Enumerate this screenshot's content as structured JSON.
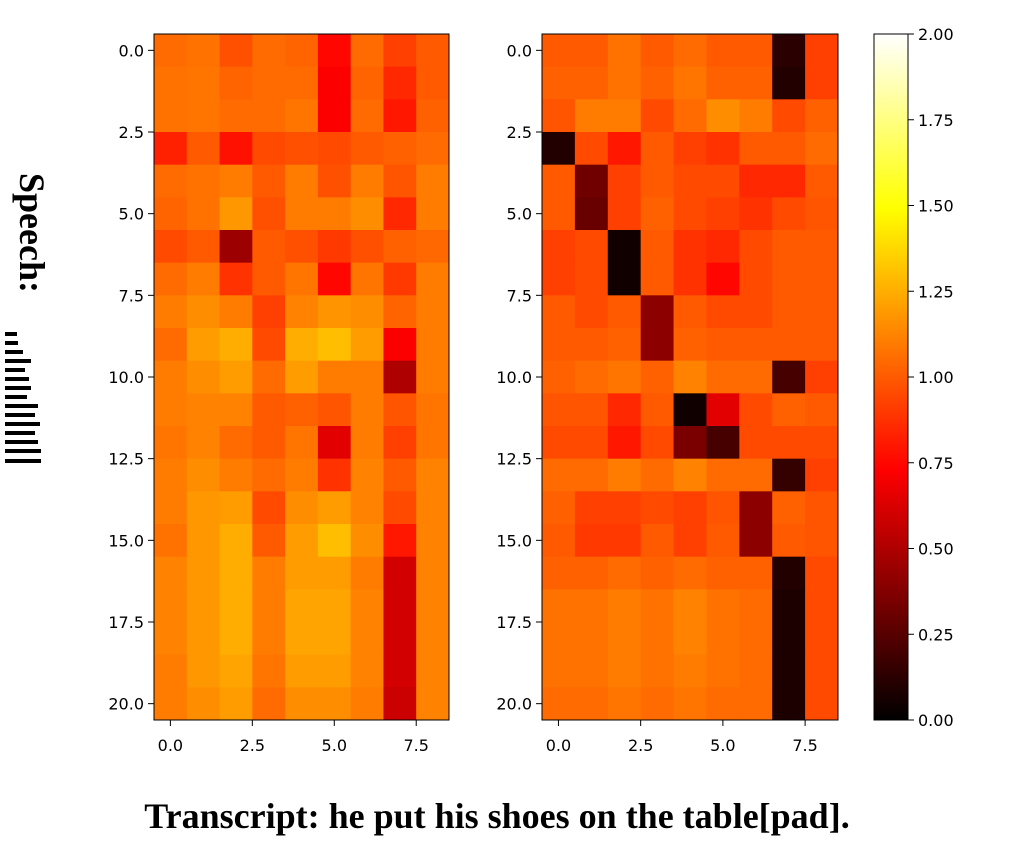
{
  "ylabel": "Speech:",
  "caption": "Transcript: he put his shoes on the table[pad].",
  "chart_data": [
    {
      "type": "heatmap",
      "title": "",
      "colormap": "hot",
      "x_range": [
        -0.5,
        8.5
      ],
      "y_range": [
        -0.5,
        20.5
      ],
      "x_ticks": [
        "0.0",
        "2.5",
        "5.0",
        "7.5"
      ],
      "y_ticks": [
        "0.0",
        "2.5",
        "5.0",
        "7.5",
        "10.0",
        "12.5",
        "15.0",
        "17.5",
        "20.0"
      ],
      "values": [
        [
          1.05,
          1.07,
          0.97,
          1.05,
          1.03,
          0.75,
          1.05,
          0.92,
          1.0
        ],
        [
          1.07,
          1.08,
          1.03,
          1.05,
          1.05,
          0.72,
          1.03,
          0.85,
          1.0
        ],
        [
          1.07,
          1.08,
          1.05,
          1.05,
          1.08,
          0.72,
          1.05,
          0.8,
          1.02
        ],
        [
          0.83,
          1.0,
          0.78,
          0.95,
          0.97,
          0.95,
          1.0,
          1.02,
          1.05
        ],
        [
          1.05,
          1.07,
          1.1,
          1.0,
          1.1,
          0.97,
          1.1,
          0.98,
          1.1
        ],
        [
          1.03,
          1.07,
          1.18,
          0.97,
          1.1,
          1.1,
          1.15,
          0.85,
          1.1
        ],
        [
          0.95,
          1.0,
          0.45,
          1.0,
          0.97,
          0.9,
          0.97,
          1.02,
          1.04
        ],
        [
          1.05,
          1.1,
          0.88,
          1.0,
          1.08,
          0.75,
          1.08,
          0.9,
          1.1
        ],
        [
          1.1,
          1.15,
          1.1,
          0.92,
          1.12,
          1.17,
          1.15,
          1.03,
          1.1
        ],
        [
          1.05,
          1.2,
          1.25,
          0.95,
          1.25,
          1.3,
          1.2,
          0.72,
          1.1
        ],
        [
          1.1,
          1.15,
          1.2,
          1.05,
          1.2,
          1.1,
          1.1,
          0.5,
          1.1
        ],
        [
          1.1,
          1.12,
          1.12,
          1.0,
          1.02,
          0.98,
          1.1,
          0.98,
          1.08
        ],
        [
          1.08,
          1.12,
          1.05,
          1.0,
          1.08,
          0.65,
          1.1,
          0.92,
          1.08
        ],
        [
          1.1,
          1.15,
          1.1,
          1.05,
          1.1,
          0.88,
          1.12,
          1.0,
          1.12
        ],
        [
          1.1,
          1.18,
          1.2,
          0.95,
          1.15,
          1.2,
          1.12,
          0.95,
          1.12
        ],
        [
          1.07,
          1.18,
          1.25,
          1.0,
          1.2,
          1.3,
          1.15,
          0.8,
          1.12
        ],
        [
          1.12,
          1.18,
          1.25,
          1.1,
          1.2,
          1.2,
          1.1,
          0.6,
          1.12
        ],
        [
          1.12,
          1.18,
          1.25,
          1.1,
          1.22,
          1.22,
          1.12,
          0.6,
          1.12
        ],
        [
          1.12,
          1.18,
          1.25,
          1.1,
          1.22,
          1.22,
          1.12,
          0.6,
          1.12
        ],
        [
          1.1,
          1.18,
          1.22,
          1.08,
          1.2,
          1.2,
          1.12,
          0.6,
          1.12
        ],
        [
          1.1,
          1.15,
          1.2,
          1.05,
          1.15,
          1.15,
          1.1,
          0.58,
          1.12
        ]
      ]
    },
    {
      "type": "heatmap",
      "title": "",
      "colormap": "hot",
      "x_range": [
        -0.5,
        8.5
      ],
      "y_range": [
        -0.5,
        20.5
      ],
      "x_ticks": [
        "0.0",
        "2.5",
        "5.0",
        "7.5"
      ],
      "y_ticks": [
        "0.0",
        "2.5",
        "5.0",
        "7.5",
        "10.0",
        "12.5",
        "15.0",
        "17.5",
        "20.0"
      ],
      "values": [
        [
          1.0,
          1.0,
          1.07,
          1.0,
          1.05,
          1.0,
          1.0,
          0.12,
          0.92
        ],
        [
          1.02,
          1.02,
          1.07,
          1.02,
          1.08,
          1.02,
          1.02,
          0.1,
          0.92
        ],
        [
          0.98,
          1.1,
          1.1,
          0.95,
          1.05,
          1.15,
          1.1,
          0.95,
          1.02
        ],
        [
          0.1,
          0.95,
          0.8,
          1.0,
          0.92,
          0.88,
          1.0,
          1.0,
          1.05
        ],
        [
          1.0,
          0.32,
          0.92,
          1.0,
          0.95,
          0.95,
          0.85,
          0.85,
          1.0
        ],
        [
          1.0,
          0.3,
          0.92,
          1.02,
          0.95,
          0.92,
          0.88,
          0.95,
          0.98
        ],
        [
          0.92,
          0.95,
          0.05,
          1.0,
          0.88,
          0.85,
          0.95,
          1.0,
          1.0
        ],
        [
          0.92,
          0.95,
          0.05,
          1.0,
          0.88,
          0.75,
          0.95,
          1.0,
          1.0
        ],
        [
          1.0,
          0.95,
          1.0,
          0.4,
          1.0,
          0.95,
          0.95,
          1.0,
          1.0
        ],
        [
          1.0,
          1.0,
          1.02,
          0.4,
          1.02,
          1.0,
          1.0,
          1.0,
          1.0
        ],
        [
          1.02,
          1.05,
          1.08,
          1.02,
          1.12,
          1.05,
          1.05,
          0.2,
          0.92
        ],
        [
          0.98,
          0.98,
          0.85,
          1.0,
          0.05,
          0.65,
          0.95,
          1.02,
          1.0
        ],
        [
          0.95,
          0.95,
          0.8,
          0.95,
          0.35,
          0.2,
          0.95,
          0.95,
          0.95
        ],
        [
          1.05,
          1.05,
          1.1,
          1.05,
          1.12,
          1.05,
          1.05,
          0.15,
          0.92
        ],
        [
          1.02,
          0.92,
          0.92,
          0.95,
          0.92,
          0.98,
          0.4,
          1.02,
          0.98
        ],
        [
          1.0,
          0.9,
          0.9,
          1.0,
          0.92,
          1.0,
          0.4,
          1.0,
          0.98
        ],
        [
          1.02,
          1.02,
          1.05,
          1.02,
          1.05,
          1.02,
          1.02,
          0.1,
          0.95
        ],
        [
          1.07,
          1.07,
          1.1,
          1.07,
          1.12,
          1.07,
          1.05,
          0.08,
          0.95
        ],
        [
          1.07,
          1.07,
          1.1,
          1.07,
          1.12,
          1.07,
          1.05,
          0.08,
          0.95
        ],
        [
          1.07,
          1.07,
          1.1,
          1.07,
          1.1,
          1.07,
          1.05,
          0.08,
          0.95
        ],
        [
          1.05,
          1.05,
          1.08,
          1.05,
          1.08,
          1.05,
          1.05,
          0.08,
          0.95
        ]
      ]
    }
  ],
  "colorbar": {
    "range": [
      0.0,
      2.0
    ],
    "ticks": [
      "0.00",
      "0.25",
      "0.50",
      "0.75",
      "1.00",
      "1.25",
      "1.50",
      "1.75",
      "2.00"
    ]
  }
}
